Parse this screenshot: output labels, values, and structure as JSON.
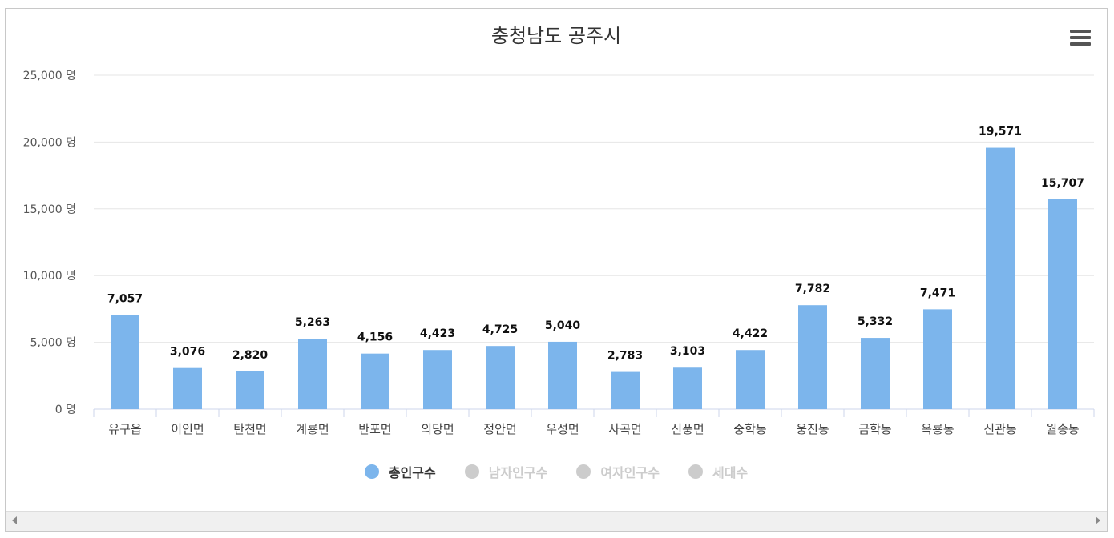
{
  "chart_data": {
    "type": "bar",
    "title": "충청남도 공주시",
    "categories": [
      "유구읍",
      "이인면",
      "탄천면",
      "계룡면",
      "반포면",
      "의당면",
      "정안면",
      "우성면",
      "사곡면",
      "신풍면",
      "중학동",
      "웅진동",
      "금학동",
      "옥룡동",
      "신관동",
      "월송동"
    ],
    "series": [
      {
        "name": "총인구수",
        "values": [
          7057,
          3076,
          2820,
          5263,
          4156,
          4423,
          4725,
          5040,
          2783,
          3103,
          4422,
          7782,
          5332,
          7471,
          19571,
          15707
        ]
      }
    ],
    "value_labels": [
      "7,057",
      "3,076",
      "2,820",
      "5,263",
      "4,156",
      "4,423",
      "4,725",
      "5,040",
      "2,783",
      "3,103",
      "4,422",
      "7,782",
      "5,332",
      "7,471",
      "19,571",
      "15,707"
    ],
    "y_ticks": [
      0,
      5000,
      10000,
      15000,
      20000,
      25000
    ],
    "y_tick_labels": [
      "0 명",
      "5,000 명",
      "10,000 명",
      "15,000 명",
      "20,000 명",
      "25,000 명"
    ],
    "ylim": [
      0,
      25000
    ],
    "grid": true,
    "legend_position": "bottom",
    "colors": {
      "bar": "#7cb5ec",
      "grid": "#e6e6e6",
      "axis": "#ccd6eb",
      "inactive": "#cccccc"
    }
  },
  "legend": [
    {
      "label": "총인구수",
      "active": true
    },
    {
      "label": "남자인구수",
      "active": false
    },
    {
      "label": "여자인구수",
      "active": false
    },
    {
      "label": "세대수",
      "active": false
    }
  ],
  "menu_icon": "hamburger-menu-icon"
}
